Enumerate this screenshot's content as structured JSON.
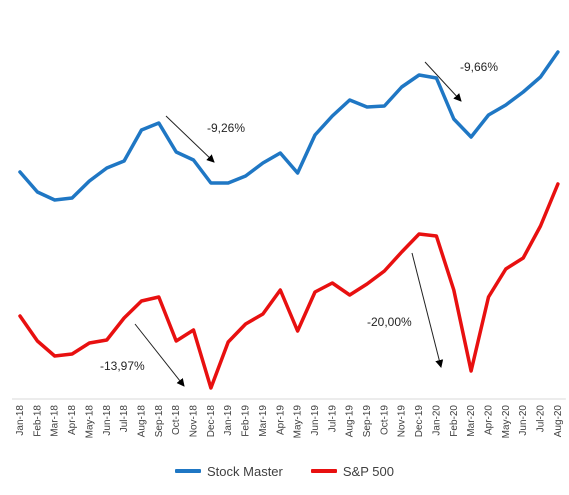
{
  "chart_data": {
    "type": "line",
    "categories": [
      "Jan-18",
      "Feb-18",
      "Mar-18",
      "Apr-18",
      "May-18",
      "Jun-18",
      "Jul-18",
      "Aug-18",
      "Sep-18",
      "Oct-18",
      "Nov-18",
      "Dec-18",
      "Jan-19",
      "Feb-19",
      "Mar-19",
      "Apr-19",
      "May-19",
      "Jun-19",
      "Jul-19",
      "Aug-19",
      "Sep-19",
      "Oct-19",
      "Nov-19",
      "Dec-19",
      "Jan-20",
      "Feb-20",
      "Mar-20",
      "Apr-20",
      "May-20",
      "Jun-20",
      "Jul-20",
      "Aug-20"
    ],
    "series": [
      {
        "name": "Stock Master",
        "color": "#1F77C4",
        "values": [
          172,
          192,
          200,
          198,
          181,
          168,
          161,
          130,
          123,
          152,
          160,
          183,
          183,
          176,
          163,
          153,
          173,
          135,
          116,
          100,
          107,
          106,
          87,
          75,
          78,
          119,
          137,
          115,
          105,
          92,
          77,
          52
        ]
      },
      {
        "name": "S&P 500",
        "color": "#E81010",
        "values": [
          316,
          341,
          356,
          354,
          343,
          340,
          318,
          301,
          297,
          341,
          330,
          388,
          342,
          324,
          314,
          290,
          331,
          292,
          283,
          295,
          284,
          271,
          252,
          234,
          236,
          290,
          371,
          297,
          269,
          258,
          226,
          184
        ]
      }
    ],
    "annotations": [
      {
        "label": "-9,26%"
      },
      {
        "label": "-13,97%"
      },
      {
        "label": "-20,00%"
      },
      {
        "label": "-9,66%"
      }
    ],
    "legend": {
      "position": "bottom"
    },
    "grid": false,
    "title": "",
    "xlabel": "",
    "ylabel": ""
  }
}
